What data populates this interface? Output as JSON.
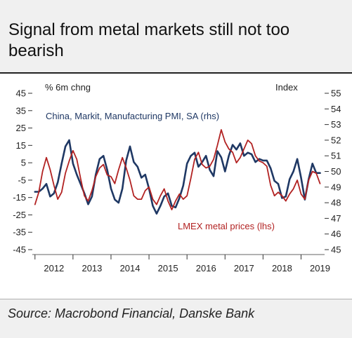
{
  "title": "Signal from metal markets still not too bearish",
  "source": "Source: Macrobond Financial, Danske Bank",
  "chart_data": {
    "type": "line",
    "left_axis_unit": "% 6m chng",
    "right_axis_unit": "Index",
    "ylim_left": [
      -45,
      45
    ],
    "ylim_right": [
      45,
      55
    ],
    "left_ticks": [
      45,
      35,
      25,
      15,
      5,
      -5,
      -15,
      -25,
      -35,
      -45
    ],
    "left_tick_labels": [
      "45",
      "35",
      "25",
      "15",
      "5",
      "-5",
      "-15",
      "-25",
      "-35",
      "-45"
    ],
    "right_ticks": [
      55,
      54,
      53,
      52,
      51,
      50,
      49,
      48,
      47,
      46,
      45
    ],
    "right_tick_labels": [
      "55",
      "54",
      "53",
      "52",
      "51",
      "50",
      "49",
      "48",
      "47",
      "46",
      "45"
    ],
    "xlim": [
      2011.93,
      2019.62
    ],
    "x_ticks": [
      "2012",
      "2013",
      "2014",
      "2015",
      "2016",
      "2017",
      "2018",
      "2019"
    ],
    "x_tick_positions": [
      2012.5,
      2013.5,
      2014.5,
      2015.5,
      2016.5,
      2017.5,
      2018.5,
      2019.5
    ],
    "x_boundaries": [
      2012,
      2013,
      2014,
      2015,
      2016,
      2017,
      2018,
      2019
    ],
    "grid": false,
    "legend": "inline labels",
    "series": [
      {
        "name": "China, Markit, Manufacturing PMI, SA (rhs)",
        "axis": "right",
        "color": "#1f3864",
        "x": [
          2012.0,
          2012.1,
          2012.2,
          2012.3,
          2012.4,
          2012.5,
          2012.6,
          2012.7,
          2012.8,
          2012.9,
          2013.0,
          2013.1,
          2013.2,
          2013.3,
          2013.4,
          2013.5,
          2013.6,
          2013.7,
          2013.8,
          2013.9,
          2014.0,
          2014.1,
          2014.2,
          2014.3,
          2014.4,
          2014.5,
          2014.6,
          2014.7,
          2014.8,
          2014.9,
          2015.0,
          2015.1,
          2015.2,
          2015.3,
          2015.4,
          2015.5,
          2015.6,
          2015.7,
          2015.8,
          2015.9,
          2016.0,
          2016.1,
          2016.2,
          2016.3,
          2016.4,
          2016.5,
          2016.6,
          2016.7,
          2016.8,
          2016.9,
          2017.0,
          2017.1,
          2017.2,
          2017.3,
          2017.4,
          2017.5,
          2017.6,
          2017.7,
          2017.8,
          2017.9,
          2018.0,
          2018.1,
          2018.2,
          2018.3,
          2018.4,
          2018.5,
          2018.6,
          2018.7,
          2018.8,
          2018.9,
          2019.0,
          2019.1,
          2019.2,
          2019.3,
          2019.4,
          2019.5
        ],
        "y": [
          48.7,
          48.7,
          48.9,
          49.2,
          48.4,
          48.6,
          49.3,
          50.5,
          51.6,
          52.0,
          50.5,
          49.8,
          49.2,
          48.6,
          47.9,
          48.4,
          49.8,
          50.8,
          51.0,
          50.1,
          48.9,
          48.2,
          48.0,
          48.9,
          50.7,
          51.6,
          50.6,
          50.3,
          49.6,
          49.8,
          48.9,
          47.8,
          47.3,
          47.8,
          48.4,
          48.6,
          47.8,
          47.7,
          48.3,
          49.1,
          50.5,
          51.0,
          51.2,
          50.3,
          50.6,
          51.0,
          50.1,
          49.7,
          51.3,
          50.9,
          50.0,
          51.0,
          51.7,
          51.4,
          51.8,
          51.0,
          51.2,
          51.1,
          50.6,
          50.8,
          50.7,
          50.7,
          50.2,
          49.4,
          49.2,
          48.3,
          48.4,
          49.5,
          50.0,
          50.8,
          49.6,
          48.2,
          49.5,
          50.5,
          49.9,
          49.9
        ]
      },
      {
        "name": "LMEX metal prices (lhs)",
        "axis": "left",
        "color": "#b22222",
        "x": [
          2012.0,
          2012.1,
          2012.2,
          2012.3,
          2012.4,
          2012.5,
          2012.6,
          2012.7,
          2012.8,
          2012.9,
          2013.0,
          2013.1,
          2013.2,
          2013.3,
          2013.4,
          2013.5,
          2013.6,
          2013.7,
          2013.8,
          2013.9,
          2014.0,
          2014.1,
          2014.2,
          2014.3,
          2014.4,
          2014.5,
          2014.6,
          2014.7,
          2014.8,
          2014.9,
          2015.0,
          2015.1,
          2015.2,
          2015.3,
          2015.4,
          2015.5,
          2015.6,
          2015.7,
          2015.8,
          2015.9,
          2016.0,
          2016.1,
          2016.2,
          2016.3,
          2016.4,
          2016.5,
          2016.6,
          2016.7,
          2016.8,
          2016.9,
          2017.0,
          2017.1,
          2017.2,
          2017.3,
          2017.4,
          2017.5,
          2017.6,
          2017.7,
          2017.8,
          2017.9,
          2018.0,
          2018.1,
          2018.2,
          2018.3,
          2018.4,
          2018.5,
          2018.6,
          2018.7,
          2018.8,
          2018.9,
          2019.0,
          2019.1,
          2019.2,
          2019.3,
          2019.4,
          2019.5
        ],
        "y": [
          -19.0,
          -12.0,
          0.0,
          8.0,
          1.0,
          -8.0,
          -16.0,
          -12.0,
          -1.0,
          6.0,
          12.0,
          7.0,
          -4.0,
          -14.0,
          -17.0,
          -11.0,
          -3.0,
          2.0,
          4.0,
          -2.0,
          -3.0,
          -7.0,
          1.0,
          8.0,
          2.0,
          -5.0,
          -14.0,
          -16.0,
          -16.0,
          -11.0,
          -9.0,
          -16.0,
          -19.0,
          -14.0,
          -10.0,
          -17.0,
          -22.0,
          -17.0,
          -13.0,
          -16.0,
          -14.0,
          -4.0,
          7.0,
          11.0,
          4.0,
          2.0,
          3.0,
          7.0,
          15.0,
          24.0,
          17.0,
          13.0,
          11.0,
          5.0,
          8.0,
          13.0,
          18.0,
          16.0,
          9.0,
          6.0,
          5.0,
          3.0,
          -8.0,
          -14.0,
          -12.0,
          -14.0,
          -17.0,
          -13.0,
          -10.0,
          -5.0,
          -13.0,
          -16.0,
          -5.0,
          0.0,
          -1.0,
          -7.0
        ]
      }
    ]
  }
}
